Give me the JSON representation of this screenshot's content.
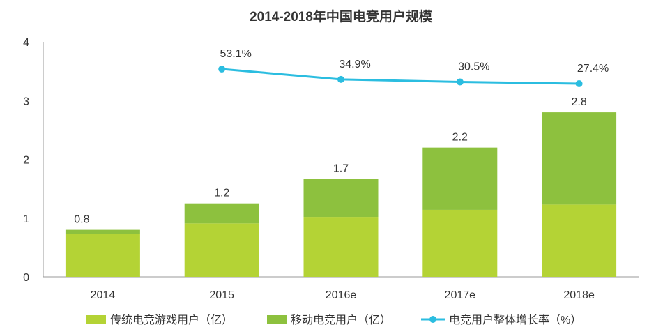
{
  "chart_data": {
    "type": "bar",
    "title": "2014-2018年中国电竞用户规模",
    "categories": [
      "2014",
      "2015",
      "2016e",
      "2017e",
      "2018e"
    ],
    "ylim": [
      0,
      4
    ],
    "yticks": [
      "0",
      "1",
      "2",
      "3",
      "4"
    ],
    "stacked": true,
    "grid": false,
    "legend_position": "bottom",
    "series": [
      {
        "name": "传统电竞游戏用户（亿）",
        "type": "bar",
        "color": "#B4D335",
        "values": [
          0.73,
          0.91,
          1.02,
          1.14,
          1.23
        ]
      },
      {
        "name": "移动电竞用户（亿）",
        "type": "bar",
        "color": "#8DC13E",
        "values": [
          0.07,
          0.34,
          0.65,
          1.06,
          1.57
        ]
      },
      {
        "name": "电竞用户整体增长率（%）",
        "type": "line",
        "color": "#2BBDE0",
        "values": [
          null,
          53.1,
          34.9,
          30.5,
          27.4
        ]
      }
    ],
    "total_labels": [
      "0.8",
      "1.2",
      "1.7",
      "2.2",
      "2.8"
    ],
    "line_labels": [
      "",
      "53.1%",
      "34.9%",
      "30.5%",
      "27.4%"
    ]
  }
}
